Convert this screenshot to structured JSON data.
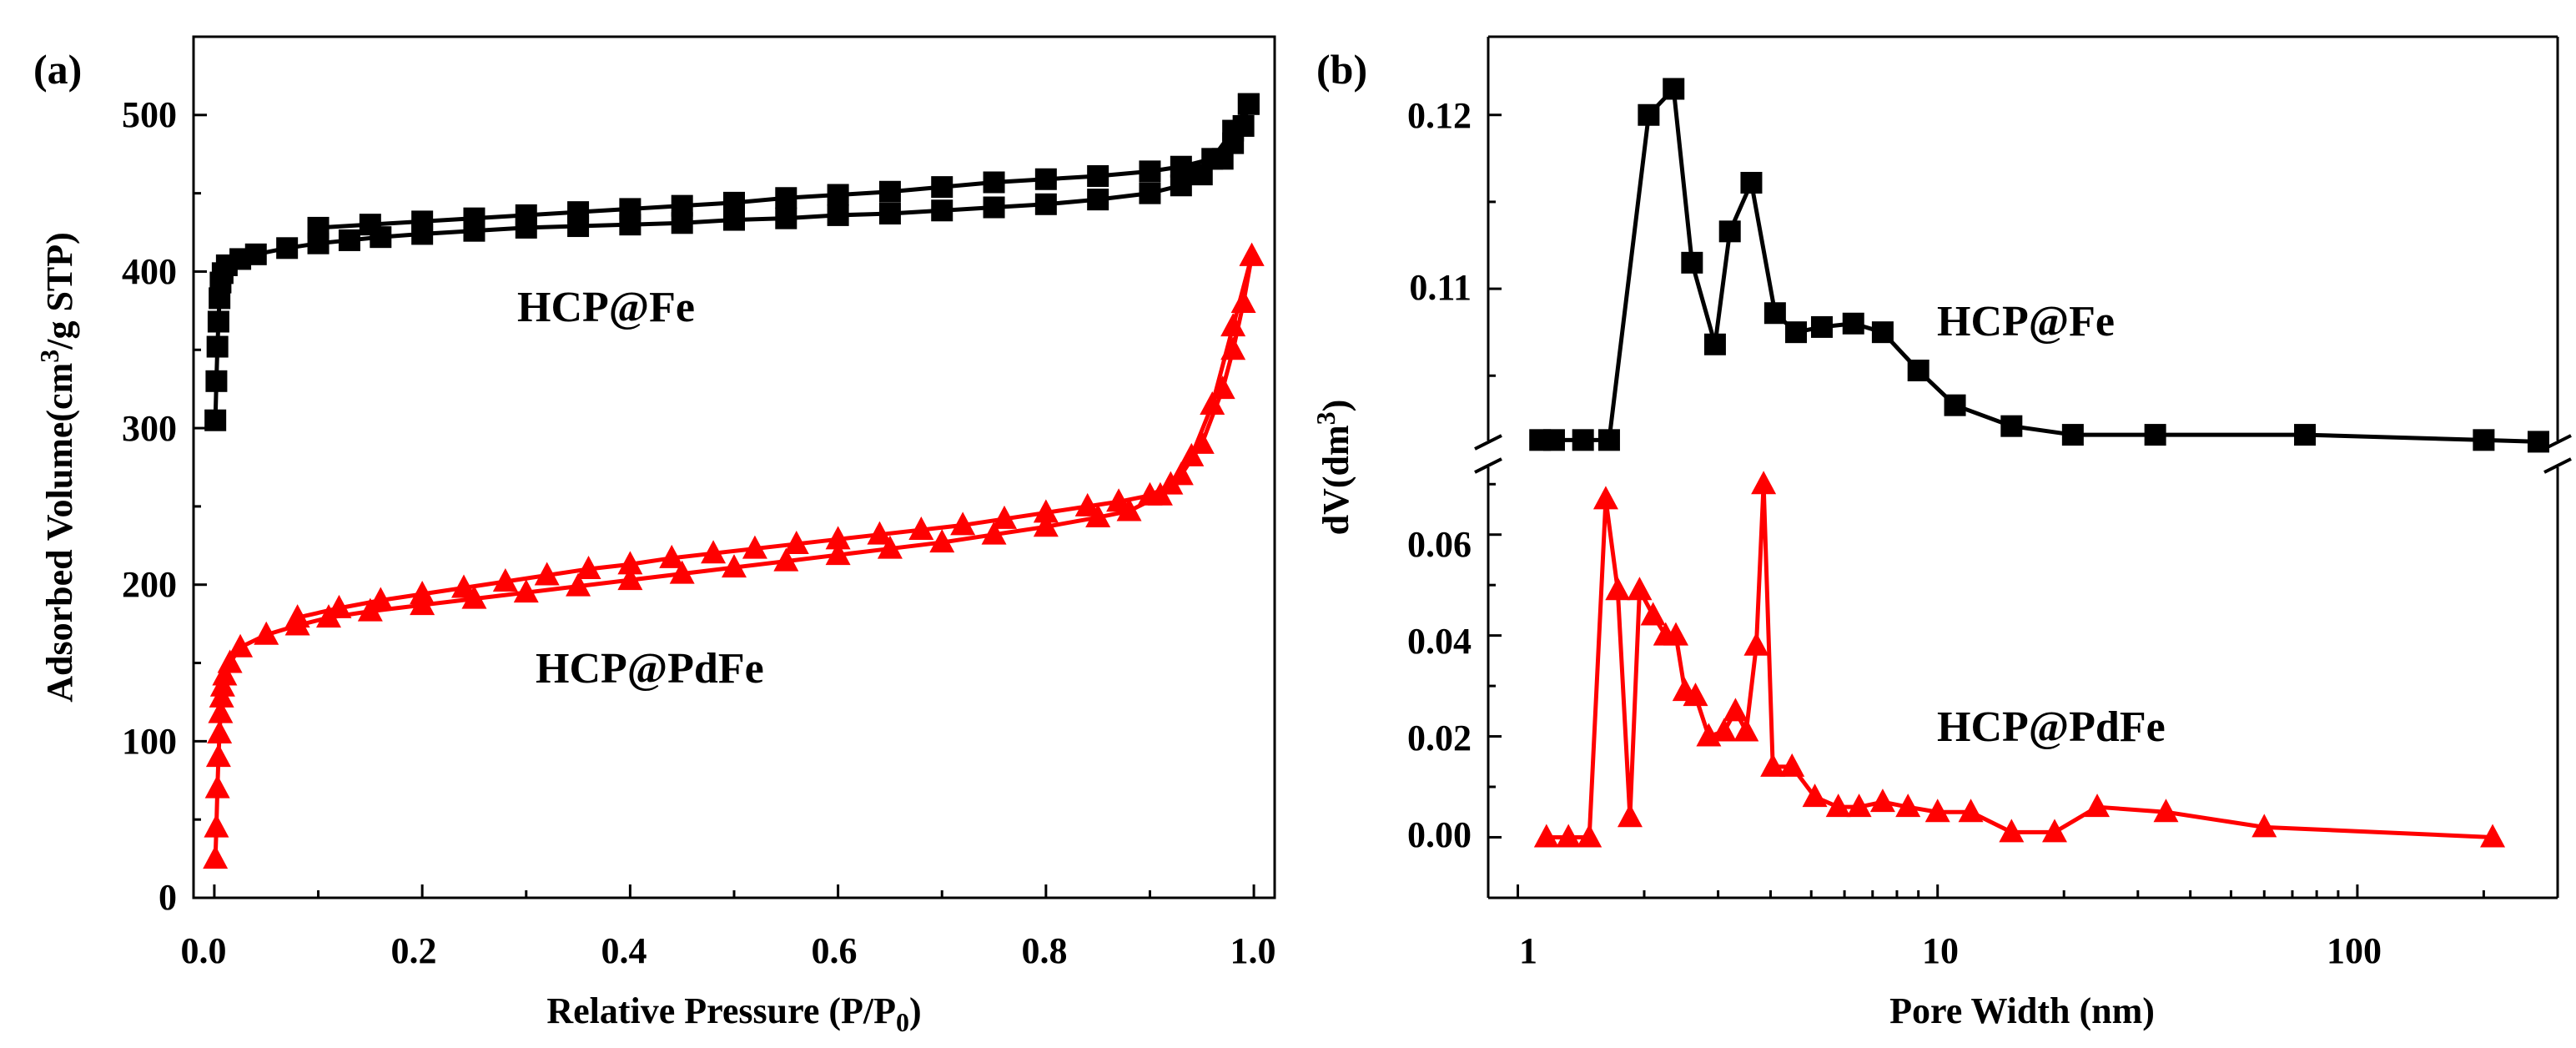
{
  "chart_data": [
    {
      "panel": "(a)",
      "type": "scatter",
      "xlabel": "Relative Pressure (P/P",
      "xlabel_sub": "0",
      "xlabel_close": ")",
      "ylabel_pre": "Adsorbed Volume(cm",
      "ylabel_sup": "3",
      "ylabel_post": "/g STP)",
      "xlim": [
        -0.02,
        1.02
      ],
      "ylim": [
        0,
        550
      ],
      "x_ticks": [
        0.0,
        0.2,
        0.4,
        0.6,
        0.8,
        1.0
      ],
      "x_tick_labels": [
        "0.0",
        "0.2",
        "0.4",
        "0.6",
        "0.8",
        "1.0"
      ],
      "y_ticks": [
        0,
        100,
        200,
        300,
        400,
        500
      ],
      "y_tick_labels": [
        "0",
        "100",
        "200",
        "300",
        "400",
        "500"
      ],
      "series": [
        {
          "name": "HCP@Fe",
          "color": "#000000",
          "marker": "square",
          "adsorption": [
            [
              0.001,
              305
            ],
            [
              0.002,
              330
            ],
            [
              0.003,
              352
            ],
            [
              0.004,
              368
            ],
            [
              0.005,
              383
            ],
            [
              0.006,
              393
            ],
            [
              0.008,
              399
            ],
            [
              0.012,
              404
            ],
            [
              0.025,
              408
            ],
            [
              0.04,
              411
            ],
            [
              0.07,
              415
            ],
            [
              0.1,
              418
            ],
            [
              0.13,
              420
            ],
            [
              0.16,
              422
            ],
            [
              0.2,
              424
            ],
            [
              0.25,
              426
            ],
            [
              0.3,
              428
            ],
            [
              0.35,
              429
            ],
            [
              0.4,
              430
            ],
            [
              0.45,
              431
            ],
            [
              0.5,
              433
            ],
            [
              0.55,
              434
            ],
            [
              0.6,
              436
            ],
            [
              0.65,
              437
            ],
            [
              0.7,
              439
            ],
            [
              0.75,
              441
            ],
            [
              0.8,
              443
            ],
            [
              0.85,
              446
            ],
            [
              0.9,
              450
            ],
            [
              0.93,
              455
            ],
            [
              0.95,
              462
            ],
            [
              0.97,
              472
            ],
            [
              0.98,
              482
            ],
            [
              0.99,
              493
            ],
            [
              0.995,
              507
            ]
          ],
          "desorption": [
            [
              0.995,
              507
            ],
            [
              0.98,
              490
            ],
            [
              0.96,
              472
            ],
            [
              0.93,
              467
            ],
            [
              0.9,
              464
            ],
            [
              0.85,
              461
            ],
            [
              0.8,
              459
            ],
            [
              0.75,
              457
            ],
            [
              0.7,
              454
            ],
            [
              0.65,
              451
            ],
            [
              0.6,
              449
            ],
            [
              0.55,
              447
            ],
            [
              0.5,
              444
            ],
            [
              0.45,
              442
            ],
            [
              0.4,
              440
            ],
            [
              0.35,
              438
            ],
            [
              0.3,
              436
            ],
            [
              0.25,
              434
            ],
            [
              0.2,
              432
            ],
            [
              0.15,
              430
            ],
            [
              0.1,
              428
            ]
          ]
        },
        {
          "name": "HCP@PdFe",
          "color": "#ff0000",
          "marker": "triangle",
          "adsorption": [
            [
              0.001,
              25
            ],
            [
              0.002,
              45
            ],
            [
              0.003,
              70
            ],
            [
              0.004,
              90
            ],
            [
              0.005,
              105
            ],
            [
              0.006,
              118
            ],
            [
              0.007,
              128
            ],
            [
              0.008,
              135
            ],
            [
              0.01,
              142
            ],
            [
              0.015,
              150
            ],
            [
              0.025,
              160
            ],
            [
              0.05,
              168
            ],
            [
              0.08,
              174
            ],
            [
              0.11,
              179
            ],
            [
              0.15,
              183
            ],
            [
              0.2,
              187
            ],
            [
              0.25,
              191
            ],
            [
              0.3,
              195
            ],
            [
              0.35,
              199
            ],
            [
              0.4,
              203
            ],
            [
              0.45,
              207
            ],
            [
              0.5,
              211
            ],
            [
              0.55,
              215
            ],
            [
              0.6,
              219
            ],
            [
              0.65,
              223
            ],
            [
              0.7,
              227
            ],
            [
              0.75,
              232
            ],
            [
              0.8,
              237
            ],
            [
              0.85,
              243
            ],
            [
              0.88,
              247
            ],
            [
              0.91,
              257
            ],
            [
              0.93,
              270
            ],
            [
              0.95,
              290
            ],
            [
              0.97,
              325
            ],
            [
              0.98,
              350
            ],
            [
              0.99,
              380
            ],
            [
              0.998,
              410
            ]
          ],
          "desorption": [
            [
              0.998,
              410
            ],
            [
              0.98,
              365
            ],
            [
              0.96,
              315
            ],
            [
              0.94,
              282
            ],
            [
              0.92,
              264
            ],
            [
              0.9,
              257
            ],
            [
              0.87,
              253
            ],
            [
              0.84,
              250
            ],
            [
              0.8,
              246
            ],
            [
              0.76,
              242
            ],
            [
              0.72,
              238
            ],
            [
              0.68,
              235
            ],
            [
              0.64,
              232
            ],
            [
              0.6,
              229
            ],
            [
              0.56,
              226
            ],
            [
              0.52,
              223
            ],
            [
              0.48,
              220
            ],
            [
              0.44,
              217
            ],
            [
              0.4,
              213
            ],
            [
              0.36,
              210
            ],
            [
              0.32,
              206
            ],
            [
              0.28,
              202
            ],
            [
              0.24,
              198
            ],
            [
              0.2,
              194
            ],
            [
              0.16,
              190
            ],
            [
              0.12,
              185
            ],
            [
              0.08,
              179
            ]
          ]
        }
      ],
      "annotations": [
        "HCP@Fe",
        "HCP@PdFe"
      ]
    },
    {
      "panel": "(b)",
      "type": "line",
      "x_scale": "log",
      "xlabel": "Pore Width (nm)",
      "ylabel_pre": "dV(dm",
      "ylabel_sup": "3",
      "ylabel_post": ")",
      "xlim": [
        0.85,
        300
      ],
      "x_ticks": [
        1,
        10,
        100
      ],
      "x_tick_labels": [
        "1",
        "10",
        "100"
      ],
      "axis_break": true,
      "upper_ylim": [
        0.1005,
        0.1245
      ],
      "upper_y_ticks": [
        0.11,
        0.12
      ],
      "upper_y_tick_labels": [
        "0.11",
        "0.12"
      ],
      "lower_ylim": [
        -0.012,
        0.076
      ],
      "lower_y_ticks": [
        0.0,
        0.02,
        0.04,
        0.06
      ],
      "lower_y_tick_labels": [
        "0.00",
        "0.02",
        "0.04",
        "0.06"
      ],
      "series": [
        {
          "name": "HCP@Fe",
          "color": "#000000",
          "marker": "square",
          "points": [
            [
              1.13,
              0.1013
            ],
            [
              1.22,
              0.1013
            ],
            [
              1.43,
              0.1013
            ],
            [
              1.65,
              0.1013
            ],
            [
              2.05,
              0.12
            ],
            [
              2.35,
              0.1215
            ],
            [
              2.6,
              0.1115
            ],
            [
              2.95,
              0.1068
            ],
            [
              3.2,
              0.1133
            ],
            [
              3.6,
              0.1161
            ],
            [
              4.1,
              0.1086
            ],
            [
              4.6,
              0.1075
            ],
            [
              5.3,
              0.1078
            ],
            [
              6.3,
              0.108
            ],
            [
              7.4,
              0.1075
            ],
            [
              9.0,
              0.1053
            ],
            [
              11.0,
              0.1033
            ],
            [
              15.0,
              0.1021
            ],
            [
              21.0,
              0.1016
            ],
            [
              33.0,
              0.1016
            ],
            [
              75.0,
              0.1016
            ],
            [
              200.0,
              0.1013
            ],
            [
              270.0,
              0.1012
            ]
          ]
        },
        {
          "name": "HCP@PdFe",
          "color": "#ff0000",
          "marker": "triangle",
          "points": [
            [
              1.17,
              0.0
            ],
            [
              1.32,
              0.0
            ],
            [
              1.48,
              0.0
            ],
            [
              1.62,
              0.067
            ],
            [
              1.73,
              0.049
            ],
            [
              1.85,
              0.004
            ],
            [
              1.95,
              0.049
            ],
            [
              2.1,
              0.044
            ],
            [
              2.25,
              0.04
            ],
            [
              2.38,
              0.04
            ],
            [
              2.5,
              0.029
            ],
            [
              2.65,
              0.028
            ],
            [
              2.85,
              0.02
            ],
            [
              3.1,
              0.021
            ],
            [
              3.3,
              0.025
            ],
            [
              3.5,
              0.021
            ],
            [
              3.7,
              0.038
            ],
            [
              3.85,
              0.07
            ],
            [
              4.05,
              0.014
            ],
            [
              4.5,
              0.014
            ],
            [
              5.1,
              0.008
            ],
            [
              5.8,
              0.006
            ],
            [
              6.5,
              0.006
            ],
            [
              7.4,
              0.007
            ],
            [
              8.5,
              0.006
            ],
            [
              10.0,
              0.005
            ],
            [
              12.0,
              0.005
            ],
            [
              15.0,
              0.001
            ],
            [
              19.0,
              0.001
            ],
            [
              24.0,
              0.006
            ],
            [
              35.0,
              0.005
            ],
            [
              60.0,
              0.002
            ],
            [
              210.0,
              0.0
            ]
          ]
        }
      ],
      "annotations": [
        "HCP@Fe",
        "HCP@PdFe"
      ]
    }
  ]
}
